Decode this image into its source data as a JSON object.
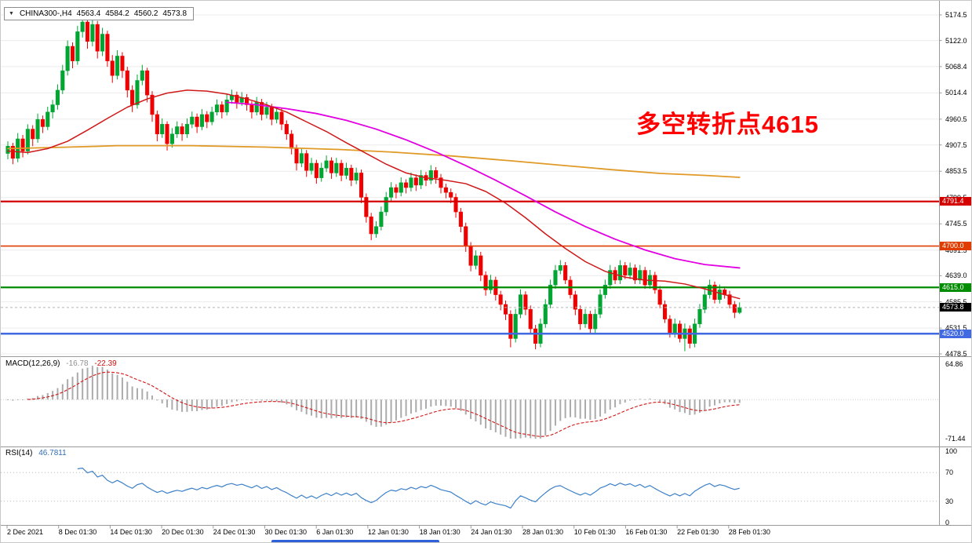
{
  "header": {
    "dropdown_icon": "▼",
    "symbol_label": "CHINA300-,H4",
    "ohlc": {
      "open": "4563.4",
      "high": "4584.2",
      "low": "4560.2",
      "close": "4573.8"
    }
  },
  "annotation": {
    "text": "多空转折点4615",
    "color": "#FF0000"
  },
  "price_axis": {
    "labels": [
      "5174.5",
      "5122.0",
      "5068.4",
      "5014.4",
      "4960.5",
      "4907.5",
      "4853.5",
      "4799.5",
      "4745.5",
      "4691.5",
      "4639.0",
      "4585.5",
      "4531.5",
      "4478.5"
    ],
    "badges": [
      {
        "value": "4791.4",
        "bg": "#D40000"
      },
      {
        "value": "4700.0",
        "bg": "#E03C00"
      },
      {
        "value": "4615.0",
        "bg": "#008C00"
      },
      {
        "value": "4573.8",
        "bg": "#000000"
      },
      {
        "value": "4520.0",
        "bg": "#4169E1"
      }
    ]
  },
  "macd_panel": {
    "label": "MACD(12,26,9)",
    "value_main": "-16.78",
    "value_signal": "-22.39",
    "axis_max": "64.86",
    "axis_min": "-71.44",
    "bar_color": "#ABABAB",
    "signal_color": "#D01818"
  },
  "rsi_panel": {
    "label": "RSI(14)",
    "value": "46.7811",
    "axis_labels": [
      "100",
      "70",
      "30",
      "0"
    ],
    "levels": [
      70,
      30
    ],
    "line_color": "#3C80C8"
  },
  "time_axis": {
    "labels": [
      "2 Dec 2021",
      "8 Dec 01:30",
      "14 Dec 01:30",
      "20 Dec 01:30",
      "24 Dec 01:30",
      "30 Dec 01:30",
      "6 Jan 01:30",
      "12 Jan 01:30",
      "18 Jan 01:30",
      "24 Jan 01:30",
      "28 Jan 01:30",
      "10 Feb 01:30",
      "16 Feb 01:30",
      "22 Feb 01:30",
      "28 Feb 01:30"
    ]
  },
  "chart_data": {
    "type": "candlestick",
    "symbol": "CHINA300-",
    "timeframe": "H4",
    "price_range": {
      "top": 5174.5,
      "bottom": 4478.5
    },
    "current_price": 4573.8,
    "last_bar": {
      "open": 4563.4,
      "high": 4584.2,
      "low": 4560.2,
      "close": 4573.8
    },
    "bull_color": "#00A532",
    "bear_color": "#EE0000",
    "candles": [
      [
        4890,
        4915,
        4878,
        4905
      ],
      [
        4905,
        4912,
        4868,
        4880
      ],
      [
        4880,
        4932,
        4872,
        4920
      ],
      [
        4920,
        4928,
        4882,
        4895
      ],
      [
        4895,
        4950,
        4888,
        4940
      ],
      [
        4940,
        4948,
        4905,
        4920
      ],
      [
        4920,
        4972,
        4912,
        4960
      ],
      [
        4960,
        4968,
        4932,
        4945
      ],
      [
        4945,
        4986,
        4938,
        4975
      ],
      [
        4975,
        5000,
        4962,
        4990
      ],
      [
        4990,
        5032,
        4980,
        5020
      ],
      [
        5020,
        5072,
        5012,
        5060
      ],
      [
        5060,
        5122,
        5050,
        5110
      ],
      [
        5110,
        5118,
        5065,
        5080
      ],
      [
        5080,
        5152,
        5072,
        5140
      ],
      [
        5140,
        5174,
        5128,
        5160
      ],
      [
        5160,
        5168,
        5105,
        5120
      ],
      [
        5120,
        5170,
        5110,
        5155
      ],
      [
        5155,
        5162,
        5085,
        5100
      ],
      [
        5100,
        5148,
        5090,
        5135
      ],
      [
        5135,
        5142,
        5068,
        5080
      ],
      [
        5080,
        5092,
        5035,
        5050
      ],
      [
        5050,
        5102,
        5042,
        5090
      ],
      [
        5090,
        5098,
        5045,
        5060
      ],
      [
        5060,
        5068,
        5005,
        5020
      ],
      [
        5020,
        5030,
        4975,
        4990
      ],
      [
        4990,
        5052,
        4982,
        5040
      ],
      [
        5040,
        5072,
        5030,
        5060
      ],
      [
        5060,
        5066,
        4995,
        5010
      ],
      [
        5010,
        5018,
        4955,
        4970
      ],
      [
        4970,
        4978,
        4915,
        4930
      ],
      [
        4930,
        4962,
        4922,
        4950
      ],
      [
        4950,
        4956,
        4896,
        4910
      ],
      [
        4910,
        4942,
        4902,
        4930
      ],
      [
        4930,
        4956,
        4922,
        4945
      ],
      [
        4945,
        4952,
        4916,
        4930
      ],
      [
        4930,
        4962,
        4922,
        4950
      ],
      [
        4950,
        4976,
        4942,
        4965
      ],
      [
        4965,
        4972,
        4932,
        4945
      ],
      [
        4945,
        4981,
        4938,
        4970
      ],
      [
        4970,
        4977,
        4942,
        4955
      ],
      [
        4955,
        4986,
        4948,
        4975
      ],
      [
        4975,
        5001,
        4968,
        4990
      ],
      [
        4990,
        4997,
        4962,
        4975
      ],
      [
        4975,
        5011,
        4968,
        5000
      ],
      [
        5000,
        5021,
        4992,
        5010
      ],
      [
        5010,
        5017,
        4982,
        4995
      ],
      [
        4995,
        5016,
        4988,
        5005
      ],
      [
        5005,
        5012,
        4978,
        4990
      ],
      [
        4990,
        4997,
        4962,
        4975
      ],
      [
        4975,
        5006,
        4968,
        4995
      ],
      [
        4995,
        5002,
        4958,
        4970
      ],
      [
        4970,
        4996,
        4962,
        4985
      ],
      [
        4985,
        4992,
        4948,
        4960
      ],
      [
        4960,
        4986,
        4952,
        4975
      ],
      [
        4975,
        4982,
        4938,
        4950
      ],
      [
        4950,
        4958,
        4918,
        4930
      ],
      [
        4930,
        4938,
        4888,
        4900
      ],
      [
        4900,
        4908,
        4855,
        4870
      ],
      [
        4870,
        4901,
        4862,
        4890
      ],
      [
        4890,
        4897,
        4842,
        4855
      ],
      [
        4855,
        4881,
        4847,
        4870
      ],
      [
        4870,
        4877,
        4828,
        4840
      ],
      [
        4840,
        4871,
        4832,
        4860
      ],
      [
        4860,
        4886,
        4852,
        4875
      ],
      [
        4875,
        4882,
        4838,
        4850
      ],
      [
        4850,
        4881,
        4842,
        4870
      ],
      [
        4870,
        4877,
        4833,
        4845
      ],
      [
        4845,
        4871,
        4837,
        4860
      ],
      [
        4860,
        4867,
        4823,
        4835
      ],
      [
        4835,
        4861,
        4827,
        4850
      ],
      [
        4850,
        4857,
        4788,
        4800
      ],
      [
        4800,
        4808,
        4748,
        4760
      ],
      [
        4760,
        4768,
        4712,
        4725
      ],
      [
        4725,
        4751,
        4717,
        4740
      ],
      [
        4740,
        4781,
        4732,
        4770
      ],
      [
        4770,
        4811,
        4762,
        4800
      ],
      [
        4800,
        4831,
        4792,
        4820
      ],
      [
        4820,
        4827,
        4798,
        4810
      ],
      [
        4810,
        4841,
        4802,
        4830
      ],
      [
        4830,
        4837,
        4808,
        4820
      ],
      [
        4820,
        4851,
        4812,
        4840
      ],
      [
        4840,
        4847,
        4813,
        4825
      ],
      [
        4825,
        4856,
        4817,
        4845
      ],
      [
        4845,
        4852,
        4823,
        4835
      ],
      [
        4835,
        4866,
        4827,
        4855
      ],
      [
        4855,
        4862,
        4828,
        4840
      ],
      [
        4840,
        4848,
        4808,
        4820
      ],
      [
        4820,
        4828,
        4798,
        4810
      ],
      [
        4810,
        4818,
        4788,
        4800
      ],
      [
        4800,
        4808,
        4758,
        4770
      ],
      [
        4770,
        4778,
        4728,
        4740
      ],
      [
        4740,
        4748,
        4688,
        4700
      ],
      [
        4700,
        4708,
        4648,
        4660
      ],
      [
        4660,
        4691,
        4652,
        4680
      ],
      [
        4680,
        4688,
        4628,
        4640
      ],
      [
        4640,
        4648,
        4598,
        4610
      ],
      [
        4610,
        4641,
        4602,
        4630
      ],
      [
        4630,
        4637,
        4588,
        4600
      ],
      [
        4600,
        4608,
        4568,
        4580
      ],
      [
        4580,
        4588,
        4548,
        4560
      ],
      [
        4560,
        4568,
        4492,
        4510
      ],
      [
        4510,
        4571,
        4502,
        4560
      ],
      [
        4560,
        4611,
        4552,
        4600
      ],
      [
        4600,
        4607,
        4558,
        4570
      ],
      [
        4570,
        4578,
        4518,
        4530
      ],
      [
        4530,
        4538,
        4488,
        4500
      ],
      [
        4500,
        4551,
        4492,
        4540
      ],
      [
        4540,
        4591,
        4532,
        4580
      ],
      [
        4580,
        4631,
        4572,
        4620
      ],
      [
        4620,
        4661,
        4612,
        4650
      ],
      [
        4650,
        4671,
        4642,
        4660
      ],
      [
        4660,
        4667,
        4622,
        4630
      ],
      [
        4630,
        4638,
        4592,
        4600
      ],
      [
        4600,
        4608,
        4558,
        4570
      ],
      [
        4570,
        4578,
        4528,
        4540
      ],
      [
        4540,
        4571,
        4532,
        4560
      ],
      [
        4560,
        4567,
        4518,
        4530
      ],
      [
        4530,
        4571,
        4522,
        4560
      ],
      [
        4560,
        4611,
        4552,
        4600
      ],
      [
        4600,
        4631,
        4592,
        4620
      ],
      [
        4620,
        4661,
        4612,
        4650
      ],
      [
        4650,
        4657,
        4622,
        4630
      ],
      [
        4630,
        4671,
        4622,
        4660
      ],
      [
        4660,
        4667,
        4632,
        4640
      ],
      [
        4640,
        4666,
        4632,
        4655
      ],
      [
        4655,
        4662,
        4622,
        4630
      ],
      [
        4630,
        4661,
        4622,
        4650
      ],
      [
        4650,
        4657,
        4612,
        4620
      ],
      [
        4620,
        4651,
        4612,
        4640
      ],
      [
        4640,
        4647,
        4602,
        4610
      ],
      [
        4610,
        4618,
        4572,
        4580
      ],
      [
        4580,
        4588,
        4542,
        4550
      ],
      [
        4550,
        4558,
        4512,
        4520
      ],
      [
        4520,
        4551,
        4512,
        4540
      ],
      [
        4540,
        4547,
        4502,
        4510
      ],
      [
        4510,
        4541,
        4484,
        4530
      ],
      [
        4530,
        4537,
        4490,
        4500
      ],
      [
        4500,
        4551,
        4492,
        4540
      ],
      [
        4540,
        4581,
        4532,
        4570
      ],
      [
        4570,
        4611,
        4562,
        4600
      ],
      [
        4600,
        4631,
        4592,
        4620
      ],
      [
        4620,
        4627,
        4582,
        4590
      ],
      [
        4590,
        4621,
        4582,
        4610
      ],
      [
        4610,
        4617,
        4592,
        4600
      ],
      [
        4600,
        4608,
        4572,
        4580
      ],
      [
        4580,
        4587,
        4552,
        4563.4
      ],
      [
        4563.4,
        4584.2,
        4560.2,
        4573.8
      ]
    ],
    "moving_averages": [
      {
        "name": "ma-slow-orange",
        "color": "#E09A28",
        "width": 1.8,
        "points": [
          [
            0,
            4900
          ],
          [
            12,
            4903
          ],
          [
            22,
            4906
          ],
          [
            37,
            4906
          ],
          [
            52,
            4903
          ],
          [
            67,
            4898
          ],
          [
            77,
            4893
          ],
          [
            89,
            4885
          ],
          [
            101,
            4875
          ],
          [
            111,
            4866
          ],
          [
            121,
            4857
          ],
          [
            131,
            4849
          ],
          [
            140,
            4845
          ],
          [
            147,
            4841
          ]
        ]
      },
      {
        "name": "ma-mid-magenta",
        "color": "#E200E2",
        "width": 1.8,
        "points": [
          [
            44,
            4995
          ],
          [
            50,
            4990
          ],
          [
            56,
            4982
          ],
          [
            62,
            4972
          ],
          [
            68,
            4958
          ],
          [
            74,
            4940
          ],
          [
            80,
            4918
          ],
          [
            86,
            4893
          ],
          [
            92,
            4865
          ],
          [
            98,
            4835
          ],
          [
            104,
            4803
          ],
          [
            110,
            4770
          ],
          [
            116,
            4740
          ],
          [
            122,
            4714
          ],
          [
            128,
            4692
          ],
          [
            134,
            4674
          ],
          [
            140,
            4662
          ],
          [
            147,
            4655
          ]
        ]
      },
      {
        "name": "ma-fast-red",
        "color": "#D01818",
        "width": 1.5,
        "points": [
          [
            0,
            4895
          ],
          [
            4,
            4892
          ],
          [
            8,
            4900
          ],
          [
            12,
            4915
          ],
          [
            16,
            4938
          ],
          [
            20,
            4962
          ],
          [
            24,
            4985
          ],
          [
            28,
            5002
          ],
          [
            32,
            5014
          ],
          [
            36,
            5020
          ],
          [
            40,
            5018
          ],
          [
            44,
            5012
          ],
          [
            48,
            5002
          ],
          [
            52,
            4990
          ],
          [
            56,
            4975
          ],
          [
            60,
            4955
          ],
          [
            64,
            4935
          ],
          [
            68,
            4912
          ],
          [
            72,
            4890
          ],
          [
            76,
            4868
          ],
          [
            80,
            4850
          ],
          [
            84,
            4840
          ],
          [
            88,
            4835
          ],
          [
            92,
            4828
          ],
          [
            96,
            4812
          ],
          [
            100,
            4788
          ],
          [
            104,
            4758
          ],
          [
            108,
            4725
          ],
          [
            112,
            4695
          ],
          [
            116,
            4668
          ],
          [
            120,
            4648
          ],
          [
            124,
            4636
          ],
          [
            128,
            4630
          ],
          [
            132,
            4628
          ],
          [
            136,
            4622
          ],
          [
            140,
            4612
          ],
          [
            144,
            4600
          ],
          [
            147,
            4592
          ]
        ]
      }
    ],
    "hlines": [
      {
        "price": 4791.4,
        "color": "#D40000",
        "width": 2.2
      },
      {
        "price": 4700.0,
        "color": "#E03C00",
        "width": 1.6
      },
      {
        "price": 4615.0,
        "color": "#008C00",
        "width": 2.2
      },
      {
        "price": 4520.0,
        "color": "#4169E1",
        "width": 2.4
      }
    ],
    "macd": {
      "fast": 12,
      "slow": 26,
      "signal": 9,
      "last_main": -16.78,
      "last_signal": -22.39,
      "axis": [
        -71.44,
        64.86
      ]
    },
    "rsi": {
      "period": 14,
      "last": 46.7811,
      "levels": [
        30,
        70
      ],
      "axis": [
        0,
        100
      ]
    }
  }
}
